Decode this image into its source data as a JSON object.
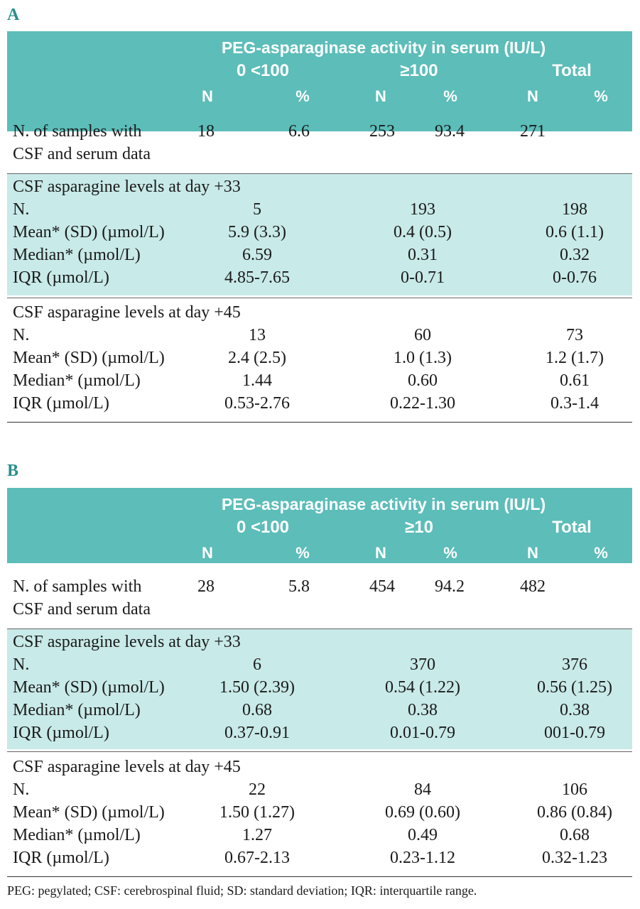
{
  "panels": [
    {
      "label": "A",
      "header": {
        "main": "PEG-asparaginase activity in serum (IU/L)",
        "groups": [
          "0 <100",
          "≥100",
          "Total"
        ],
        "sub": [
          "N",
          "%",
          "N",
          "%",
          "N",
          "%"
        ]
      },
      "samples": {
        "label_line1": "N. of samples with",
        "label_line2": "CSF and serum data",
        "values": [
          "18",
          "6.6",
          "253",
          "93.4",
          "271"
        ]
      },
      "sections": [
        {
          "title": "CSF asparagine levels at day +33",
          "rows": [
            {
              "label": "N.",
              "values": [
                "5",
                "193",
                "198"
              ]
            },
            {
              "label": "Mean* (SD) (µmol/L)",
              "values": [
                "5.9 (3.3)",
                "0.4 (0.5)",
                "0.6 (1.1)"
              ]
            },
            {
              "label": "Median* (µmol/L)",
              "values": [
                "6.59",
                "0.31",
                "0.32"
              ]
            },
            {
              "label": "IQR (µmol/L)",
              "values": [
                "4.85-7.65",
                "0-0.71",
                "0-0.76"
              ]
            }
          ]
        },
        {
          "title": "CSF asparagine levels at day +45",
          "rows": [
            {
              "label": "N.",
              "values": [
                "13",
                "60",
                "73"
              ]
            },
            {
              "label": "Mean* (SD) (µmol/L)",
              "values": [
                "2.4 (2.5)",
                "1.0 (1.3)",
                "1.2 (1.7)"
              ]
            },
            {
              "label": "Median* (µmol/L)",
              "values": [
                "1.44",
                "0.60",
                "0.61"
              ]
            },
            {
              "label": "IQR (µmol/L)",
              "values": [
                "0.53-2.76",
                "0.22-1.30",
                "0.3-1.4"
              ]
            }
          ]
        }
      ]
    },
    {
      "label": "B",
      "header": {
        "main": "PEG-asparaginase activity in serum (IU/L)",
        "groups": [
          "0 <100",
          "≥10",
          "Total"
        ],
        "sub": [
          "N",
          "%",
          "N",
          "%",
          "N",
          "%"
        ]
      },
      "samples": {
        "label_line1": "N. of samples with",
        "label_line2": "CSF and serum data",
        "values": [
          "28",
          "5.8",
          "454",
          "94.2",
          "482"
        ]
      },
      "sections": [
        {
          "title": "CSF asparagine levels at day +33",
          "rows": [
            {
              "label": "N.",
              "values": [
                "6",
                "370",
                "376"
              ]
            },
            {
              "label": "Mean* (SD) (µmol/L)",
              "values": [
                "1.50 (2.39)",
                "0.54 (1.22)",
                "0.56 (1.25)"
              ]
            },
            {
              "label": "Median* (µmol/L)",
              "values": [
                "0.68",
                "0.38",
                "0.38"
              ]
            },
            {
              "label": "IQR (µmol/L)",
              "values": [
                "0.37-0.91",
                "0.01-0.79",
                "001-0.79"
              ]
            }
          ]
        },
        {
          "title": "CSF asparagine levels at day +45",
          "rows": [
            {
              "label": "N.",
              "values": [
                "22",
                "84",
                "106"
              ]
            },
            {
              "label": "Mean* (SD) (µmol/L)",
              "values": [
                "1.50 (1.27)",
                "0.69 (0.60)",
                "0.86 (0.84)"
              ]
            },
            {
              "label": "Median* (µmol/L)",
              "values": [
                "1.27",
                "0.49",
                "0.68"
              ]
            },
            {
              "label": "IQR (µmol/L)",
              "values": [
                "0.67-2.13",
                "0.23-1.12",
                "0.32-1.23"
              ]
            }
          ]
        }
      ]
    }
  ],
  "footnote": "PEG: pegylated; CSF: cerebrospinal fluid; SD: standard deviation; IQR: interquartile range.",
  "colors": {
    "header_bg": "#5cbdb9",
    "section_bg": "#c8eae8",
    "label": "#2a8f8b"
  }
}
